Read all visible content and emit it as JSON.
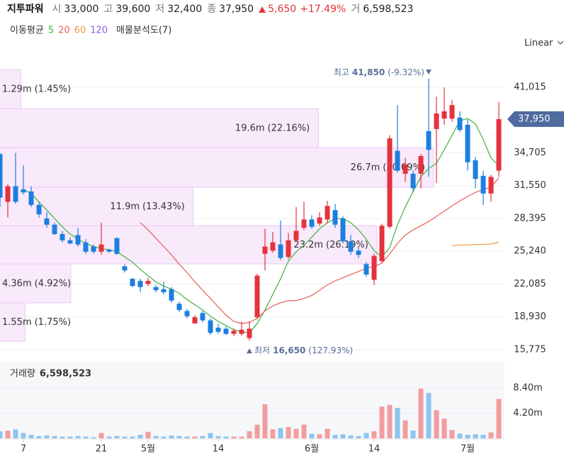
{
  "header": {
    "name": "지투파워",
    "fields": [
      {
        "label": "시",
        "value": "33,000"
      },
      {
        "label": "고",
        "value": "39,600"
      },
      {
        "label": "저",
        "value": "32,400"
      },
      {
        "label": "종",
        "value": "37,950"
      }
    ],
    "change": "5,650",
    "change_pct": "+17.49%",
    "volume": {
      "label": "거",
      "value": "6,598,523"
    },
    "scale_menu": "Linear"
  },
  "chart_data": [
    {
      "type": "candlestick",
      "categories": [
        null,
        null,
        null,
        "7",
        null,
        null,
        null,
        null,
        null,
        null,
        null,
        null,
        null,
        "21",
        null,
        null,
        null,
        null,
        null,
        "5월",
        null,
        null,
        null,
        null,
        null,
        null,
        null,
        null,
        "14",
        null,
        null,
        null,
        null,
        null,
        null,
        null,
        null,
        null,
        null,
        null,
        "6월",
        null,
        null,
        null,
        null,
        null,
        null,
        null,
        "14",
        null,
        null,
        null,
        null,
        null,
        null,
        null,
        null,
        null,
        null,
        null,
        "7월",
        null,
        null,
        null,
        null
      ],
      "open": [
        34600,
        30000,
        31500,
        31200,
        31000,
        29700,
        28400,
        27800,
        26900,
        26300,
        26800,
        26100,
        25700,
        25200,
        25400,
        26500,
        23800,
        22600,
        22400,
        22100,
        21800,
        21600,
        21600,
        20200,
        19500,
        18300,
        19300,
        18600,
        17900,
        17800,
        17300,
        17300,
        16900,
        18900,
        25000,
        25300,
        25900,
        24700,
        26300,
        27500,
        28300,
        27900,
        28300,
        29200,
        28400,
        26200,
        25300,
        24000,
        22500,
        24300,
        27600,
        34900,
        32700,
        32700,
        32700,
        36800,
        37000,
        38000,
        38000,
        38100,
        37400,
        34000,
        32500,
        30800,
        33000
      ],
      "high": [
        34700,
        31700,
        34700,
        33500,
        31500,
        30000,
        29000,
        28000,
        27200,
        26600,
        27500,
        26400,
        25900,
        28000,
        25500,
        26600,
        24000,
        22700,
        22600,
        22700,
        22000,
        22300,
        21800,
        20400,
        19700,
        19100,
        19500,
        18800,
        18300,
        18000,
        17800,
        18500,
        18500,
        23100,
        27400,
        27100,
        28200,
        27000,
        29500,
        30000,
        28700,
        29000,
        30100,
        29800,
        28600,
        26800,
        25600,
        24200,
        25000,
        27900,
        36400,
        39300,
        34200,
        33000,
        34600,
        41850,
        40100,
        41000,
        39800,
        38700,
        37900,
        34300,
        33000,
        32600,
        39600
      ],
      "low": [
        29500,
        28500,
        29800,
        30700,
        29500,
        28500,
        27500,
        26800,
        26100,
        25900,
        25700,
        25000,
        25000,
        24900,
        25100,
        24900,
        23200,
        21800,
        21300,
        21900,
        21300,
        21100,
        20300,
        19400,
        18800,
        18300,
        18400,
        17200,
        17300,
        17200,
        17100,
        17100,
        16650,
        18700,
        23400,
        25100,
        24400,
        24500,
        26100,
        27300,
        27400,
        27700,
        27900,
        27500,
        26000,
        24900,
        24600,
        22800,
        22000,
        24100,
        27400,
        32800,
        31900,
        30900,
        31300,
        32400,
        31800,
        37400,
        37700,
        36700,
        33000,
        31300,
        29700,
        30000,
        32400
      ],
      "close": [
        30400,
        31500,
        30000,
        30900,
        29700,
        28800,
        27800,
        26900,
        26300,
        26000,
        25900,
        25200,
        25200,
        25900,
        25200,
        25000,
        23400,
        21900,
        21800,
        22400,
        21500,
        21300,
        20500,
        19600,
        19000,
        18900,
        18600,
        17400,
        17500,
        17300,
        17600,
        17700,
        17800,
        22900,
        25700,
        26100,
        24600,
        26300,
        27200,
        28300,
        27600,
        28500,
        29600,
        27800,
        26200,
        25200,
        24900,
        23000,
        24800,
        27700,
        36100,
        33000,
        33600,
        31300,
        34400,
        35000,
        38500,
        38700,
        39300,
        36900,
        33800,
        32200,
        30800,
        32400,
        37950
      ],
      "up_color": "#e5323d",
      "down_color": "#1c7fe0",
      "ylim": [
        14820,
        42720
      ],
      "yticks": [
        {
          "value": 15775,
          "label": "15,775"
        },
        {
          "value": 18930,
          "label": "18,930"
        },
        {
          "value": 22085,
          "label": "22,085"
        },
        {
          "value": 25240,
          "label": "25,240"
        },
        {
          "value": 28395,
          "label": "28,395"
        },
        {
          "value": 31550,
          "label": "31,550"
        },
        {
          "value": 34705,
          "label": "34,705"
        },
        {
          "value": 41015,
          "label": "41,015"
        }
      ],
      "grid": true,
      "moving_average": {
        "label": "이동평균",
        "series": [
          {
            "name": "5",
            "color": "#3db53d",
            "values": [
              null,
              null,
              null,
              31200,
              30800,
              30000,
              29200,
              28400,
              27600,
              26900,
              26400,
              26000,
              25700,
              25500,
              25400,
              25200,
              24700,
              24200,
              23500,
              22900,
              22300,
              21900,
              21600,
              21200,
              20600,
              20100,
              19600,
              19000,
              18500,
              18100,
              17700,
              17500,
              17400,
              18300,
              19600,
              21100,
              22600,
              24300,
              25200,
              25800,
              26600,
              27400,
              28000,
              28400,
              28400,
              28000,
              27300,
              26400,
              25300,
              24700,
              25600,
              27800,
              29500,
              31000,
              32400,
              33200,
              33700,
              35000,
              36400,
              37800,
              38000,
              37500,
              36000,
              34200,
              33500
            ]
          },
          {
            "name": "20",
            "color": "#e8605a",
            "values": [
              null,
              null,
              null,
              null,
              null,
              null,
              null,
              null,
              null,
              null,
              null,
              null,
              null,
              null,
              null,
              null,
              null,
              null,
              28000,
              27300,
              26500,
              25700,
              24900,
              24000,
              23200,
              22300,
              21500,
              20700,
              19900,
              19100,
              18500,
              18300,
              18400,
              18800,
              19500,
              20000,
              20300,
              20500,
              20500,
              20700,
              21000,
              21500,
              22000,
              22400,
              22700,
              23000,
              23300,
              23600,
              23800,
              24100,
              25000,
              26000,
              26800,
              27300,
              27700,
              28100,
              28600,
              29100,
              29600,
              30100,
              30500,
              30900,
              31200,
              31400,
              32300
            ]
          },
          {
            "name": "60",
            "color": "#e99a3c",
            "values": [
              null,
              null,
              null,
              null,
              null,
              null,
              null,
              null,
              null,
              null,
              null,
              null,
              null,
              null,
              null,
              null,
              null,
              null,
              null,
              null,
              null,
              null,
              null,
              null,
              null,
              null,
              null,
              null,
              null,
              null,
              null,
              null,
              null,
              null,
              null,
              null,
              null,
              null,
              null,
              null,
              null,
              null,
              null,
              null,
              null,
              null,
              null,
              null,
              null,
              null,
              null,
              null,
              null,
              null,
              null,
              null,
              null,
              null,
              25800,
              25850,
              25850,
              25900,
              25900,
              25950,
              26100
            ]
          },
          {
            "name": "120",
            "color": "#8a5cf0",
            "values": [
              null,
              null,
              null,
              null,
              null,
              null,
              null,
              null,
              null,
              null,
              null,
              null,
              null,
              null,
              null,
              null,
              null,
              null,
              null,
              null,
              null,
              null,
              null,
              null,
              null,
              null,
              null,
              null,
              null,
              null,
              null,
              null,
              null,
              null,
              null,
              null,
              null,
              null,
              null,
              null,
              null,
              null,
              null,
              null,
              null,
              null,
              null,
              null,
              null,
              null,
              null,
              null,
              null,
              null,
              null,
              null,
              null,
              null,
              null,
              null,
              null,
              null,
              null,
              null,
              null
            ]
          }
        ]
      },
      "volume_profile": {
        "label": "매물분석도(7)",
        "bins": [
          16590,
          20280,
          24030,
          27710,
          31400,
          35220,
          38970,
          42720
        ],
        "values": [
          1.55,
          4.36,
          23.2,
          11.9,
          26.7,
          19.6,
          1.29
        ],
        "value_labels": [
          "1.55m",
          "4.36m",
          "23.2m",
          "11.9m",
          "26.7m",
          "19.6m",
          "1.29m"
        ],
        "percent_labels": [
          "(1.75%)",
          "(4.92%)",
          "(26.19%)",
          "(13.43%)",
          "(30.09%)",
          "(22.16%)",
          "(1.45%)"
        ]
      },
      "annotations": {
        "high": {
          "label": "최고",
          "value": 41850,
          "value_label": "41,850",
          "change": "(-9.32%)",
          "index": 55
        },
        "low": {
          "label": "최저",
          "value": 16650,
          "value_label": "16,650",
          "change": "(127.93%)",
          "index": 32
        }
      },
      "last_price": {
        "value": 37950,
        "label": "37,950"
      }
    },
    {
      "type": "bar",
      "title": "거래량",
      "latest_label": "6,598,523",
      "values": [
        1.2,
        1.3,
        1.5,
        0.9,
        0.6,
        0.4,
        0.5,
        0.4,
        0.3,
        0.3,
        0.4,
        0.3,
        0.2,
        0.9,
        0.3,
        0.4,
        0.3,
        0.3,
        0.6,
        1.1,
        0.4,
        0.3,
        0.5,
        0.4,
        0.3,
        0.3,
        0.4,
        0.9,
        0.4,
        0.3,
        0.3,
        0.3,
        1.2,
        2.3,
        5.7,
        1.5,
        1.75,
        1.9,
        1.6,
        2.3,
        0.8,
        0.7,
        1.6,
        0.6,
        0.7,
        0.5,
        0.4,
        0.9,
        1.2,
        5.3,
        5.6,
        5.1,
        3.0,
        1.3,
        8.3,
        7.6,
        4.7,
        3.3,
        1.4,
        0.8,
        0.6,
        0.7,
        0.6,
        1.0,
        6.598523
      ],
      "up_color": "#f29c9f",
      "down_color": "#8dc4f0",
      "ylim": [
        0,
        12.78
      ],
      "yticks": [
        {
          "value": 4.2,
          "label": "4.20m"
        },
        {
          "value": 8.4,
          "label": "8.40m"
        }
      ]
    }
  ]
}
